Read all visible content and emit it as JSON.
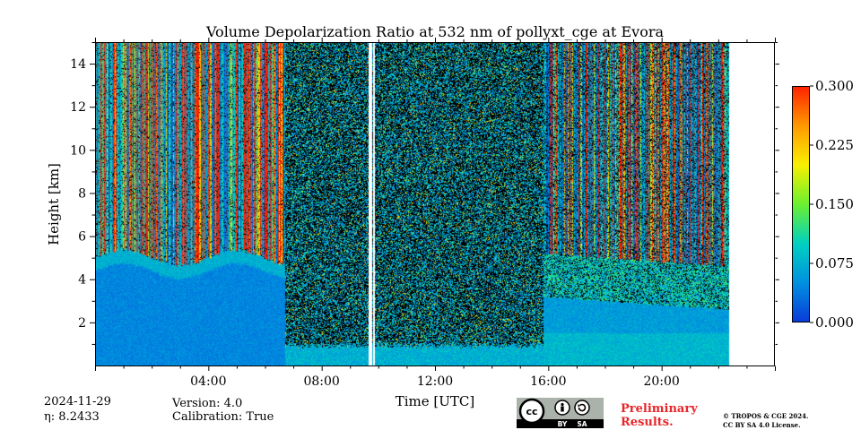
{
  "chart_data": {
    "type": "heatmap",
    "title": "Volume Depolarization Ratio at 532 nm of pollyxt_cge at Evora",
    "xlabel": "Time [UTC]",
    "ylabel": "Height [km]",
    "xlim_hours": [
      0,
      24
    ],
    "ylim_km": [
      0,
      15
    ],
    "x_ticks": [
      {
        "value": 4,
        "label": "04:00"
      },
      {
        "value": 8,
        "label": "08:00"
      },
      {
        "value": 12,
        "label": "12:00"
      },
      {
        "value": 16,
        "label": "16:00"
      },
      {
        "value": 20,
        "label": "20:00"
      }
    ],
    "y_ticks": [
      {
        "value": 2,
        "label": "2"
      },
      {
        "value": 4,
        "label": "4"
      },
      {
        "value": 6,
        "label": "6"
      },
      {
        "value": 8,
        "label": "8"
      },
      {
        "value": 10,
        "label": "10"
      },
      {
        "value": 12,
        "label": "12"
      },
      {
        "value": 14,
        "label": "14"
      }
    ],
    "colorbar": {
      "range": [
        0.0,
        0.3
      ],
      "ticks": [
        {
          "value": 0.0,
          "label": "0.000"
        },
        {
          "value": 0.075,
          "label": "0.075"
        },
        {
          "value": 0.15,
          "label": "0.150"
        },
        {
          "value": 0.225,
          "label": "0.225"
        },
        {
          "value": 0.3,
          "label": "0.300"
        }
      ],
      "colors": [
        "#0a3ad8",
        "#0090e0",
        "#00d0c0",
        "#6cf030",
        "#f8f000",
        "#ff9800",
        "#ff2000"
      ]
    },
    "data_end_hour": 22.4,
    "data_gaps_hours": [
      [
        9.65,
        9.75
      ],
      [
        9.8,
        9.85
      ]
    ],
    "regimes": [
      {
        "name": "aerosol layer with clouds",
        "start_hour": 0,
        "end_hour": 6.7,
        "layer_top_km": 5.0
      },
      {
        "name": "noisy high signal",
        "start_hour": 6.7,
        "end_hour": 15.8,
        "layer_top_km": 0.8
      },
      {
        "name": "evening boundary layer",
        "start_hour": 15.8,
        "end_hour": 22.4,
        "layer_top_km": 3.2
      }
    ]
  },
  "footer": {
    "date": "2024-11-29",
    "eta": "η: 8.2433",
    "version": "Version: 4.0",
    "calibration": "Calibration: True",
    "preliminary_line1": "Preliminary",
    "preliminary_line2": "Results.",
    "copyright_line1": "© TROPOS & CGE 2024.",
    "copyright_line2": "CC BY SA 4.0 License.",
    "license_logo_text": [
      "cc",
      "BY",
      "SA"
    ]
  }
}
